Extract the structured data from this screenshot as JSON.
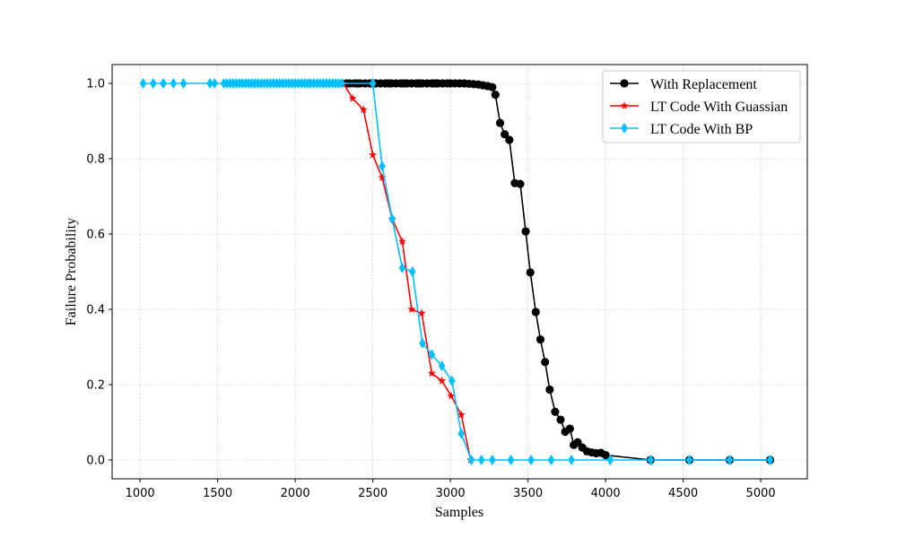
{
  "chart_data": {
    "type": "line",
    "xlabel": "Samples",
    "ylabel": "Failure Probability",
    "xlim": [
      820,
      5300
    ],
    "ylim": [
      -0.05,
      1.05
    ],
    "xticks": [
      "1000",
      "1500",
      "2000",
      "2500",
      "3000",
      "3500",
      "4000",
      "4500",
      "5000"
    ],
    "yticks": [
      "0.0",
      "0.2",
      "0.4",
      "0.6",
      "0.8",
      "1.0"
    ],
    "grid": true,
    "legend_position": "top-right",
    "series": [
      {
        "name": "With Replacement",
        "color": "#000000",
        "marker": "circle",
        "x": [
          2330,
          2350,
          2380,
          2400,
          2420,
          2450,
          2480,
          2500,
          2520,
          2550,
          2580,
          2600,
          2620,
          2650,
          2680,
          2700,
          2720,
          2750,
          2780,
          2800,
          2820,
          2850,
          2880,
          2900,
          2920,
          2950,
          2980,
          3000,
          3030,
          3060,
          3090,
          3120,
          3150,
          3180,
          3210,
          3240,
          3270,
          3290,
          3320,
          3350,
          3380,
          3415,
          3450,
          3485,
          3515,
          3550,
          3580,
          3610,
          3640,
          3675,
          3710,
          3740,
          3770,
          3795,
          3820,
          3850,
          3880,
          3910,
          3940,
          3970,
          4000,
          4290,
          4540,
          4800,
          5060
        ],
        "y": [
          1.0,
          1.0,
          1.0,
          1.0,
          1.0,
          1.0,
          1.0,
          1.0,
          1.0,
          1.0,
          1.0,
          1.0,
          1.0,
          1.0,
          1.0,
          1.0,
          1.0,
          1.0,
          1.0,
          1.0,
          1.0,
          1.0,
          1.0,
          1.0,
          1.0,
          1.0,
          1.0,
          1.0,
          1.0,
          1.0,
          1.0,
          0.999,
          0.998,
          0.997,
          0.995,
          0.993,
          0.99,
          0.97,
          0.895,
          0.865,
          0.85,
          0.735,
          0.733,
          0.607,
          0.498,
          0.393,
          0.32,
          0.26,
          0.187,
          0.128,
          0.107,
          0.075,
          0.083,
          0.04,
          0.047,
          0.033,
          0.023,
          0.02,
          0.018,
          0.019,
          0.013,
          0.0,
          0.0,
          0.0,
          0.0
        ]
      },
      {
        "name": "LT Code With Guassian",
        "color": "#ff0000",
        "marker": "star",
        "x": [
          2310,
          2370,
          2440,
          2500,
          2560,
          2625,
          2690,
          2750,
          2815,
          2880,
          2945,
          3005,
          3070,
          3130
        ],
        "y": [
          1.0,
          0.96,
          0.93,
          0.81,
          0.75,
          0.64,
          0.58,
          0.4,
          0.39,
          0.23,
          0.21,
          0.17,
          0.12,
          0.0
        ]
      },
      {
        "name": "LT Code With BP",
        "color": "#00bfff",
        "marker": "diamond",
        "x": [
          1020,
          1085,
          1150,
          1215,
          1280,
          1450,
          1480,
          1540,
          1560,
          1580,
          1600,
          1620,
          1640,
          1660,
          1680,
          1700,
          1720,
          1740,
          1760,
          1780,
          1800,
          1820,
          1840,
          1860,
          1880,
          1900,
          1920,
          1940,
          1960,
          1980,
          2000,
          2020,
          2040,
          2060,
          2080,
          2100,
          2120,
          2140,
          2160,
          2180,
          2200,
          2220,
          2240,
          2260,
          2280,
          2300,
          2500,
          2560,
          2625,
          2690,
          2755,
          2820,
          2880,
          2945,
          3010,
          3070,
          3135,
          3200,
          3270,
          3390,
          3520,
          3650,
          3780,
          4030,
          4290,
          4540,
          4800,
          5060
        ],
        "y": [
          1.0,
          1.0,
          1.0,
          1.0,
          1.0,
          1.0,
          1.0,
          1.0,
          1.0,
          1.0,
          1.0,
          1.0,
          1.0,
          1.0,
          1.0,
          1.0,
          1.0,
          1.0,
          1.0,
          1.0,
          1.0,
          1.0,
          1.0,
          1.0,
          1.0,
          1.0,
          1.0,
          1.0,
          1.0,
          1.0,
          1.0,
          1.0,
          1.0,
          1.0,
          1.0,
          1.0,
          1.0,
          1.0,
          1.0,
          1.0,
          1.0,
          1.0,
          1.0,
          1.0,
          1.0,
          1.0,
          1.0,
          0.78,
          0.64,
          0.51,
          0.5,
          0.31,
          0.28,
          0.25,
          0.21,
          0.07,
          0.0,
          0.0,
          0.0,
          0.0,
          0.0,
          0.0,
          0.0,
          0.0,
          0.0,
          0.0,
          0.0,
          0.0
        ]
      }
    ]
  }
}
